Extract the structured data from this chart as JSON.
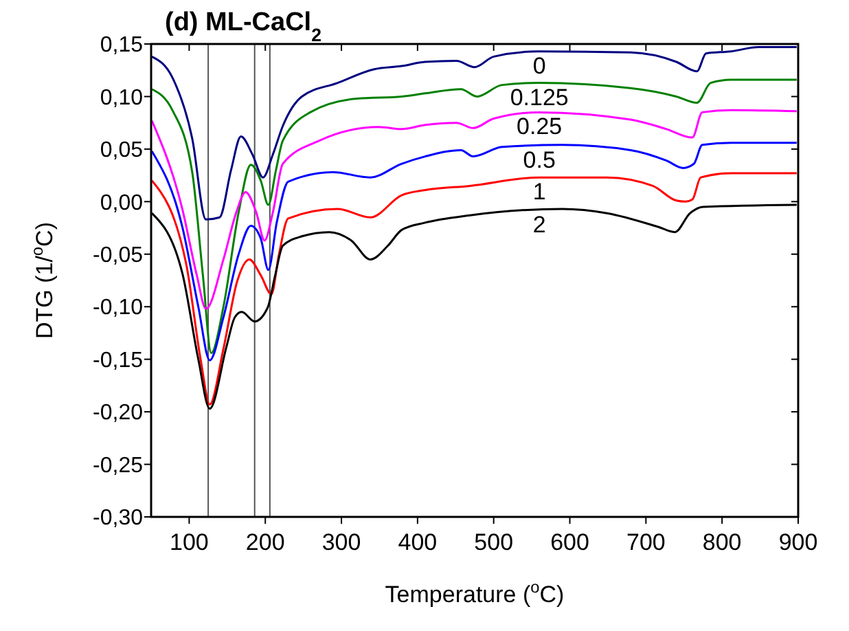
{
  "chart_data": {
    "type": "line",
    "title": "(d) ML-CaCl$_{2}$",
    "xlabel": "Temperature ($^{o}$C)",
    "ylabel": "DTG (1/$^{o}$C)",
    "xlim": [
      50,
      900
    ],
    "xticks": [
      100,
      200,
      300,
      400,
      500,
      600,
      700,
      800,
      900
    ],
    "ylim": [
      -0.3,
      0.15
    ],
    "yticks": [
      {
        "value": -0.3,
        "label": "-0,30"
      },
      {
        "value": -0.25,
        "label": "-0,25"
      },
      {
        "value": -0.2,
        "label": "-0,20"
      },
      {
        "value": -0.15,
        "label": "-0,15"
      },
      {
        "value": -0.1,
        "label": "-0,10"
      },
      {
        "value": -0.05,
        "label": "-0,05"
      },
      {
        "value": 0,
        "label": "0,00"
      },
      {
        "value": 0.05,
        "label": "0,05"
      },
      {
        "value": 0.1,
        "label": "0,10"
      },
      {
        "value": 0.15,
        "label": "0,15"
      }
    ],
    "grid": false,
    "line_style": "solid",
    "series": [
      {
        "name": "0",
        "color": "#000080",
        "x": [
          51,
          78,
          104,
          122,
          140,
          155,
          168,
          183,
          197,
          210,
          223,
          248,
          295,
          343,
          379,
          410,
          451,
          475,
          500,
          559,
          680,
          740,
          767,
          779,
          812,
          848,
          898
        ],
        "values": [
          0.138,
          0.118,
          0.06,
          -0.017,
          -0.015,
          0.03,
          0.062,
          0.045,
          0.023,
          0.045,
          0.072,
          0.1,
          0.113,
          0.126,
          0.129,
          0.133,
          0.134,
          0.128,
          0.138,
          0.143,
          0.142,
          0.133,
          0.124,
          0.141,
          0.143,
          0.147,
          0.147
        ]
      },
      {
        "name": "0.125",
        "color": "#008000",
        "x": [
          51,
          78,
          104,
          118,
          129,
          145,
          165,
          181,
          194,
          204,
          214,
          223,
          259,
          320,
          379,
          410,
          457,
          478,
          511,
          559,
          680,
          740,
          767,
          785,
          812,
          898
        ],
        "values": [
          0.107,
          0.087,
          0.028,
          -0.07,
          -0.144,
          -0.1,
          -0.01,
          0.035,
          0.02,
          -0.003,
          0.03,
          0.058,
          0.085,
          0.098,
          0.1,
          0.103,
          0.107,
          0.1,
          0.111,
          0.113,
          0.108,
          0.1,
          0.094,
          0.113,
          0.116,
          0.116
        ]
      },
      {
        "name": "0.25",
        "color": "#ff00ff",
        "x": [
          51,
          91,
          110,
          122,
          145,
          162,
          174,
          188,
          199,
          210,
          223,
          271,
          349,
          379,
          410,
          451,
          473,
          500,
          559,
          680,
          727,
          761,
          774,
          812,
          898
        ],
        "values": [
          0.077,
          -0.007,
          -0.07,
          -0.102,
          -0.055,
          -0.01,
          0.009,
          -0.01,
          -0.037,
          -0.01,
          0.036,
          0.058,
          0.071,
          0.069,
          0.073,
          0.075,
          0.07,
          0.079,
          0.085,
          0.078,
          0.069,
          0.061,
          0.085,
          0.087,
          0.086
        ]
      },
      {
        "name": "0.5",
        "color": "#0000ff",
        "x": [
          51,
          91,
          112,
          127,
          145,
          165,
          181,
          194,
          204,
          215,
          230,
          289,
          338,
          379,
          410,
          457,
          473,
          511,
          590,
          680,
          727,
          749,
          763,
          774,
          812,
          898
        ],
        "values": [
          0.048,
          -0.024,
          -0.1,
          -0.151,
          -0.11,
          -0.05,
          -0.023,
          -0.035,
          -0.065,
          -0.02,
          0.019,
          0.028,
          0.023,
          0.036,
          0.043,
          0.049,
          0.043,
          0.052,
          0.054,
          0.049,
          0.039,
          0.032,
          0.036,
          0.054,
          0.056,
          0.056
        ]
      },
      {
        "name": "1",
        "color": "#ff0000",
        "x": [
          51,
          96,
          115,
          127,
          145,
          163,
          179,
          194,
          208,
          218,
          230,
          295,
          338,
          379,
          410,
          469,
          559,
          649,
          709,
          740,
          752,
          761,
          772,
          812,
          898
        ],
        "values": [
          0.02,
          -0.059,
          -0.15,
          -0.193,
          -0.14,
          -0.076,
          -0.055,
          -0.07,
          -0.088,
          -0.05,
          -0.016,
          -0.007,
          -0.015,
          0.006,
          0.011,
          0.015,
          0.023,
          0.023,
          0.015,
          0.001,
          0,
          0.002,
          0.023,
          0.027,
          0.027
        ]
      },
      {
        "name": "2",
        "color": "#000000",
        "x": [
          51,
          91,
          112,
          127,
          149,
          160,
          169,
          186,
          203,
          213,
          223,
          248,
          284,
          313,
          338,
          361,
          379,
          410,
          469,
          590,
          649,
          716,
          738,
          758,
          775,
          898
        ],
        "values": [
          -0.011,
          -0.068,
          -0.15,
          -0.197,
          -0.138,
          -0.11,
          -0.105,
          -0.114,
          -0.101,
          -0.07,
          -0.042,
          -0.033,
          -0.029,
          -0.037,
          -0.055,
          -0.042,
          -0.027,
          -0.02,
          -0.013,
          -0.007,
          -0.011,
          -0.024,
          -0.029,
          -0.011,
          -0.005,
          -0.003
        ]
      }
    ],
    "ref_lines": [
      {
        "axis": "x",
        "value": 125,
        "color": "#555555"
      },
      {
        "axis": "x",
        "value": 186,
        "color": "#555555"
      },
      {
        "axis": "x",
        "value": 206,
        "color": "#555555"
      }
    ]
  }
}
